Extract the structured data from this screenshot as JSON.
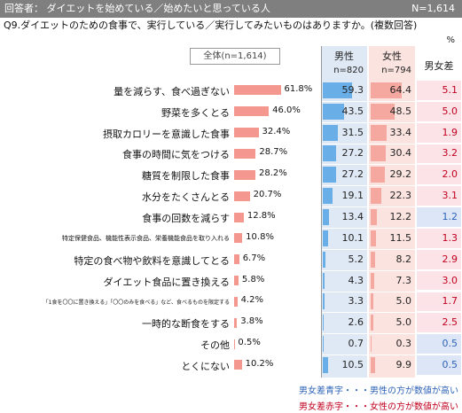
{
  "header": {
    "left": "回答者： ダイエットを始めている／始めたいと思っている人",
    "right": "N=1,614"
  },
  "question": "Q9.ダイエットのための食事で、実行している／実行してみたいものはありますか。(複数回答)",
  "unit": "%",
  "total_label": "全体(n=1,614)",
  "columns": {
    "male": "男性",
    "male_n": "n=820",
    "female": "女性",
    "female_n": "n=794",
    "diff": "男女差"
  },
  "legend": {
    "blue": "男女差青字・・・男性の方が数値が高い",
    "red": "男女差赤字・・・女性の方が数値が高い"
  },
  "colors": {
    "total_bar": "#f4978e",
    "male_bar": "#6aaee8",
    "female_bar": "#f4a89f",
    "male_col_bg": "#dfe9f5",
    "female_col_bg": "#fbe3df",
    "diff_red_bg": "#fbe3e8",
    "diff_blue_bg": "#dde6f6",
    "red_text": "#c0001e",
    "blue_text": "#2e63b8"
  },
  "chart_data": {
    "type": "bar",
    "categories": [
      "量を減らす、食べ過ぎない",
      "野菜を多くとる",
      "摂取カロリーを意識した食事",
      "食事の時間に気をつける",
      "糖質を制限した食事",
      "水分をたくさんとる",
      "食事の回数を減らす",
      "特定保健食品、機能性表示食品、栄養機能食品を取り入れる",
      "特定の食べ物や飲料を意識してとる",
      "ダイエット食品に置き換える",
      "「1食を〇〇に置き換える」「〇〇のみを食べる」など、食べるものを限定する",
      "一時的な断食をする",
      "その他",
      "とくにない"
    ],
    "total_labels": [
      "61.8%",
      "46.0%",
      "32.4%",
      "28.7%",
      "28.2%",
      "20.7%",
      "12.8%",
      "10.8%",
      "6.7%",
      "5.8%",
      "4.2%",
      "3.8%",
      "0.5%",
      "10.2%"
    ],
    "series": [
      {
        "name": "全体(n=1,614)",
        "values": [
          61.8,
          46.0,
          32.4,
          28.7,
          28.2,
          20.7,
          12.8,
          10.8,
          6.7,
          5.8,
          4.2,
          3.8,
          0.5,
          10.2
        ]
      },
      {
        "name": "男性",
        "values": [
          59.3,
          43.5,
          31.5,
          27.2,
          27.2,
          19.1,
          13.4,
          10.1,
          5.2,
          4.3,
          3.3,
          2.6,
          0.7,
          10.5
        ]
      },
      {
        "name": "女性",
        "values": [
          64.4,
          48.5,
          33.4,
          30.4,
          29.2,
          22.3,
          12.2,
          11.5,
          8.2,
          7.3,
          5.0,
          5.0,
          0.3,
          9.9
        ]
      },
      {
        "name": "男女差",
        "values": [
          5.1,
          5.0,
          1.9,
          3.2,
          2.0,
          3.1,
          1.2,
          1.3,
          2.9,
          3.0,
          1.7,
          2.5,
          0.5,
          0.5
        ]
      }
    ],
    "male_text": [
      "59.3",
      "43.5",
      "31.5",
      "27.2",
      "27.2",
      "19.1",
      "13.4",
      "10.1",
      "5.2",
      "4.3",
      "3.3",
      "2.6",
      "0.7",
      "10.5"
    ],
    "female_text": [
      "64.4",
      "48.5",
      "33.4",
      "30.4",
      "29.2",
      "22.3",
      "12.2",
      "11.5",
      "8.2",
      "7.3",
      "5.0",
      "5.0",
      "0.3",
      "9.9"
    ],
    "diff_text": [
      "5.1",
      "5.0",
      "1.9",
      "3.2",
      "2.0",
      "3.1",
      "1.2",
      "1.3",
      "2.9",
      "3.0",
      "1.7",
      "2.5",
      "0.5",
      "0.5"
    ],
    "diff_higher": [
      "female",
      "female",
      "female",
      "female",
      "female",
      "female",
      "male",
      "female",
      "female",
      "female",
      "female",
      "female",
      "male",
      "male"
    ]
  }
}
